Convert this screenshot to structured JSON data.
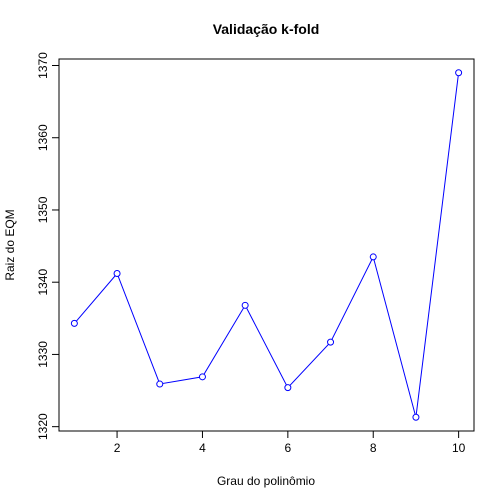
{
  "chart_data": {
    "type": "line",
    "title": "Validação k-fold",
    "xlabel": "Grau do polinômio",
    "ylabel": "Raiz do EQM",
    "x": [
      1,
      2,
      3,
      4,
      5,
      6,
      7,
      8,
      9,
      10
    ],
    "series": [
      {
        "values": [
          1334.3,
          1341.2,
          1325.9,
          1326.9,
          1336.8,
          1325.4,
          1331.7,
          1343.5,
          1321.3,
          1369.0
        ]
      }
    ],
    "xticks": [
      2,
      4,
      6,
      8,
      10
    ],
    "yticks": [
      1320,
      1330,
      1340,
      1350,
      1360,
      1370
    ],
    "xlim": [
      0.64,
      10.36
    ],
    "ylim": [
      1319.4,
      1370.9
    ],
    "line_color": "#0000FF",
    "marker": "open-circle",
    "grid": false,
    "legend": "none"
  }
}
